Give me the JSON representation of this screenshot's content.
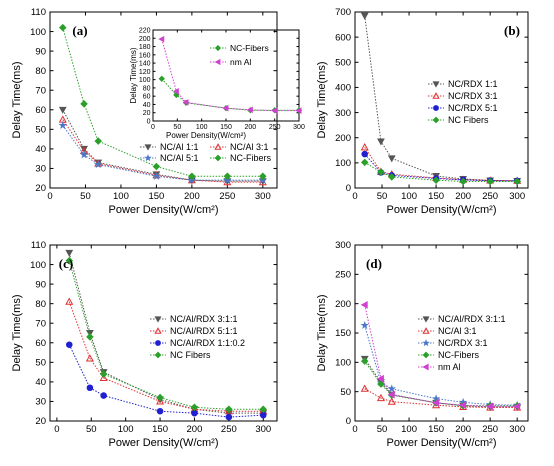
{
  "chart_data": [
    {
      "type": "line",
      "panel_label": "(a)",
      "xlabel": "Power Density(W/cm²)",
      "ylabel": "Delay Time(ms)",
      "xlim": [
        0,
        320
      ],
      "ylim": [
        20,
        110
      ],
      "xticks": [
        0,
        50,
        100,
        150,
        200,
        250,
        300
      ],
      "yticks": [
        20,
        30,
        40,
        50,
        60,
        70,
        80,
        90,
        100,
        110
      ],
      "x": [
        18,
        48,
        68,
        150,
        200,
        250,
        300
      ],
      "series": [
        {
          "name": "NC/Al 1:1",
          "values": [
            60,
            40,
            33,
            27,
            24,
            23.5,
            23.5
          ],
          "color": "#555555",
          "marker": "tri-down"
        },
        {
          "name": "NC/Al 3:1",
          "values": [
            55,
            39,
            32.5,
            26.5,
            24,
            23,
            23
          ],
          "color": "#e03030",
          "marker": "tri-up-open"
        },
        {
          "name": "NC/Al 5:1",
          "values": [
            52,
            37,
            32,
            26,
            24,
            24,
            24
          ],
          "color": "#4a78c8",
          "marker": "star"
        },
        {
          "name": "NC-Fibers",
          "values": [
            102,
            63,
            44,
            31,
            26,
            26,
            26
          ],
          "color": "#2aa02a",
          "marker": "diamond"
        }
      ],
      "inset": {
        "xlabel": "Power Density(W/cm²)",
        "ylabel": "Delay Time(ms)",
        "xlim": [
          0,
          300
        ],
        "ylim": [
          0,
          220
        ],
        "xticks": [
          0,
          50,
          100,
          150,
          200,
          250,
          300
        ],
        "yticks": [
          0,
          20,
          40,
          60,
          80,
          100,
          120,
          140,
          160,
          180,
          200,
          220
        ],
        "x": [
          18,
          48,
          68,
          150,
          200,
          250,
          300
        ],
        "series": [
          {
            "name": "NC-Fibers",
            "values": [
              102,
              63,
              44,
              31,
              26,
              26,
              26
            ],
            "color": "#2aa02a",
            "marker": "diamond"
          },
          {
            "name": "nm Al",
            "values": [
              198,
              72,
              45,
              31,
              27,
              25,
              25
            ],
            "color": "#d040d0",
            "marker": "tri-left"
          }
        ]
      }
    },
    {
      "type": "line",
      "panel_label": "(b)",
      "xlabel": "Power Density(W/cm²)",
      "ylabel": "Delay Time(ms)",
      "xlim": [
        0,
        320
      ],
      "ylim": [
        0,
        700
      ],
      "xticks": [
        0,
        50,
        100,
        150,
        200,
        250,
        300
      ],
      "yticks": [
        0,
        100,
        200,
        300,
        400,
        500,
        600,
        700
      ],
      "x": [
        18,
        48,
        68,
        150,
        200,
        250,
        300
      ],
      "series": [
        {
          "name": "NC/RDX 1:1",
          "values": [
            685,
            185,
            118,
            48,
            36,
            30,
            28
          ],
          "color": "#555555",
          "marker": "tri-down"
        },
        {
          "name": "NC/RDX 3:1",
          "values": [
            162,
            65,
            55,
            40,
            33,
            30,
            29
          ],
          "color": "#e03030",
          "marker": "tri-up-open"
        },
        {
          "name": "NC/RDX 5:1",
          "values": [
            135,
            62,
            50,
            38,
            32,
            29,
            28
          ],
          "color": "#2020d0",
          "marker": "circle"
        },
        {
          "name": "NC Fibers",
          "values": [
            102,
            63,
            44,
            31,
            26,
            26,
            26
          ],
          "color": "#2aa02a",
          "marker": "diamond"
        }
      ]
    },
    {
      "type": "line",
      "panel_label": "(c)",
      "xlabel": "Power Density(W/cm²)",
      "ylabel": "Delay Time(ms)",
      "xlim": [
        -10,
        320
      ],
      "ylim": [
        20,
        110
      ],
      "xticks": [
        0,
        50,
        100,
        150,
        200,
        250,
        300
      ],
      "yticks": [
        20,
        30,
        40,
        50,
        60,
        70,
        80,
        90,
        100,
        110
      ],
      "x": [
        18,
        48,
        68,
        150,
        200,
        250,
        300
      ],
      "series": [
        {
          "name": "NC/Al/RDX 3:1:1",
          "values": [
            106,
            65,
            45,
            31,
            26,
            24,
            24
          ],
          "color": "#555555",
          "marker": "tri-down"
        },
        {
          "name": "NC/Al/RDX 5:1:1",
          "values": [
            81,
            52,
            42,
            30,
            26,
            25,
            25
          ],
          "color": "#e03030",
          "marker": "tri-up-open"
        },
        {
          "name": "NC/Al/RDX 1:1:0.2",
          "values": [
            59,
            37,
            33,
            25,
            24,
            22,
            23
          ],
          "color": "#2020d0",
          "marker": "circle"
        },
        {
          "name": "NC Fibers",
          "values": [
            102,
            63,
            44,
            32,
            27,
            26,
            26
          ],
          "color": "#2aa02a",
          "marker": "diamond"
        }
      ]
    },
    {
      "type": "line",
      "panel_label": "(d)",
      "xlabel": "Power Density(W/cm²)",
      "ylabel": "Delay Time(ms)",
      "xlim": [
        0,
        320
      ],
      "ylim": [
        0,
        300
      ],
      "xticks": [
        0,
        50,
        100,
        150,
        200,
        250,
        300
      ],
      "yticks": [
        0,
        50,
        100,
        150,
        200,
        250,
        300
      ],
      "x": [
        18,
        48,
        68,
        150,
        200,
        250,
        300
      ],
      "series": [
        {
          "name": "NC/Al/RDX 3:1:1",
          "values": [
            106,
            66,
            45,
            31,
            26,
            24,
            24
          ],
          "color": "#555555",
          "marker": "tri-down"
        },
        {
          "name": "NC/Al 3:1",
          "values": [
            55,
            39,
            33,
            27,
            24,
            23,
            23
          ],
          "color": "#e03030",
          "marker": "tri-up-open"
        },
        {
          "name": "NC/RDX 3:1",
          "values": [
            163,
            65,
            55,
            38,
            32,
            28,
            27
          ],
          "color": "#4a78c8",
          "marker": "star"
        },
        {
          "name": "NC-Fibers",
          "values": [
            102,
            63,
            44,
            31,
            26,
            26,
            26
          ],
          "color": "#2aa02a",
          "marker": "diamond"
        },
        {
          "name": "nm Al",
          "values": [
            198,
            72,
            45,
            31,
            27,
            25,
            25
          ],
          "color": "#d040d0",
          "marker": "tri-left"
        }
      ]
    }
  ]
}
